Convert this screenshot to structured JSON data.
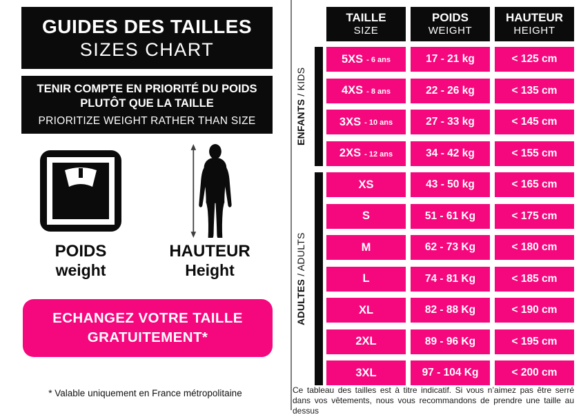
{
  "colors": {
    "accent_pink": "#F5077E",
    "box_black": "#0b0b0b",
    "divider_gray": "#7d7d7d"
  },
  "left_panel": {
    "title_fr": "GUIDES DES TAILLES",
    "title_en": "SIZES CHART",
    "notice_fr_line1": "TENIR COMPTE EN PRIORITÉ DU POIDS",
    "notice_fr_line2": "PLUTÔT QUE LA TAILLE",
    "notice_en": "PRIORITIZE WEIGHT RATHER THAN SIZE",
    "weight_label_fr": "POIDS",
    "weight_label_en": "weight",
    "height_label_fr": "HAUTEUR",
    "height_label_en": "Height",
    "exchange_line1": "ECHANGEZ VOTRE TAILLE",
    "exchange_line2": "GRATUITEMENT*",
    "footnote": "* Valable uniquement en France métropolitaine"
  },
  "table": {
    "headers": [
      {
        "fr": "TAILLE",
        "en": "SIZE"
      },
      {
        "fr": "POIDS",
        "en": "WEIGHT"
      },
      {
        "fr": "HAUTEUR",
        "en": "HEIGHT"
      }
    ],
    "groups": [
      {
        "bold": "ENFANTS",
        "rest": " / KIDS"
      },
      {
        "bold": "ADULTES",
        "rest": " / ADULTS"
      }
    ],
    "rows": [
      {
        "size": "5XS",
        "age": "- 6 ans",
        "weight": "17 - 21 kg",
        "height": "< 125 cm",
        "group": "kids"
      },
      {
        "size": "4XS",
        "age": "- 8 ans",
        "weight": "22 - 26 kg",
        "height": "< 135 cm",
        "group": "kids"
      },
      {
        "size": "3XS",
        "age": "- 10 ans",
        "weight": "27 - 33 kg",
        "height": "< 145 cm",
        "group": "kids"
      },
      {
        "size": "2XS",
        "age": "- 12 ans",
        "weight": "34 - 42 kg",
        "height": "< 155 cm",
        "group": "kids"
      },
      {
        "size": "XS",
        "age": "",
        "weight": "43 - 50 kg",
        "height": "< 165 cm",
        "group": "adults"
      },
      {
        "size": "S",
        "age": "",
        "weight": "51 - 61 Kg",
        "height": "< 175 cm",
        "group": "adults"
      },
      {
        "size": "M",
        "age": "",
        "weight": "62 - 73 Kg",
        "height": "< 180 cm",
        "group": "adults"
      },
      {
        "size": "L",
        "age": "",
        "weight": "74 - 81 Kg",
        "height": "< 185 cm",
        "group": "adults"
      },
      {
        "size": "XL",
        "age": "",
        "weight": "82 - 88 Kg",
        "height": "< 190 cm",
        "group": "adults"
      },
      {
        "size": "2XL",
        "age": "",
        "weight": "89 - 96 Kg",
        "height": "< 195 cm",
        "group": "adults"
      },
      {
        "size": "3XL",
        "age": "",
        "weight": "97 - 104 Kg",
        "height": "< 200 cm",
        "group": "adults"
      }
    ]
  },
  "bottom_note": "Ce tableau des tailles est à titre indicatif. Si vous n’aimez pas être serré dans vos vêtements, nous vous recommandons de prendre une taille au dessus"
}
